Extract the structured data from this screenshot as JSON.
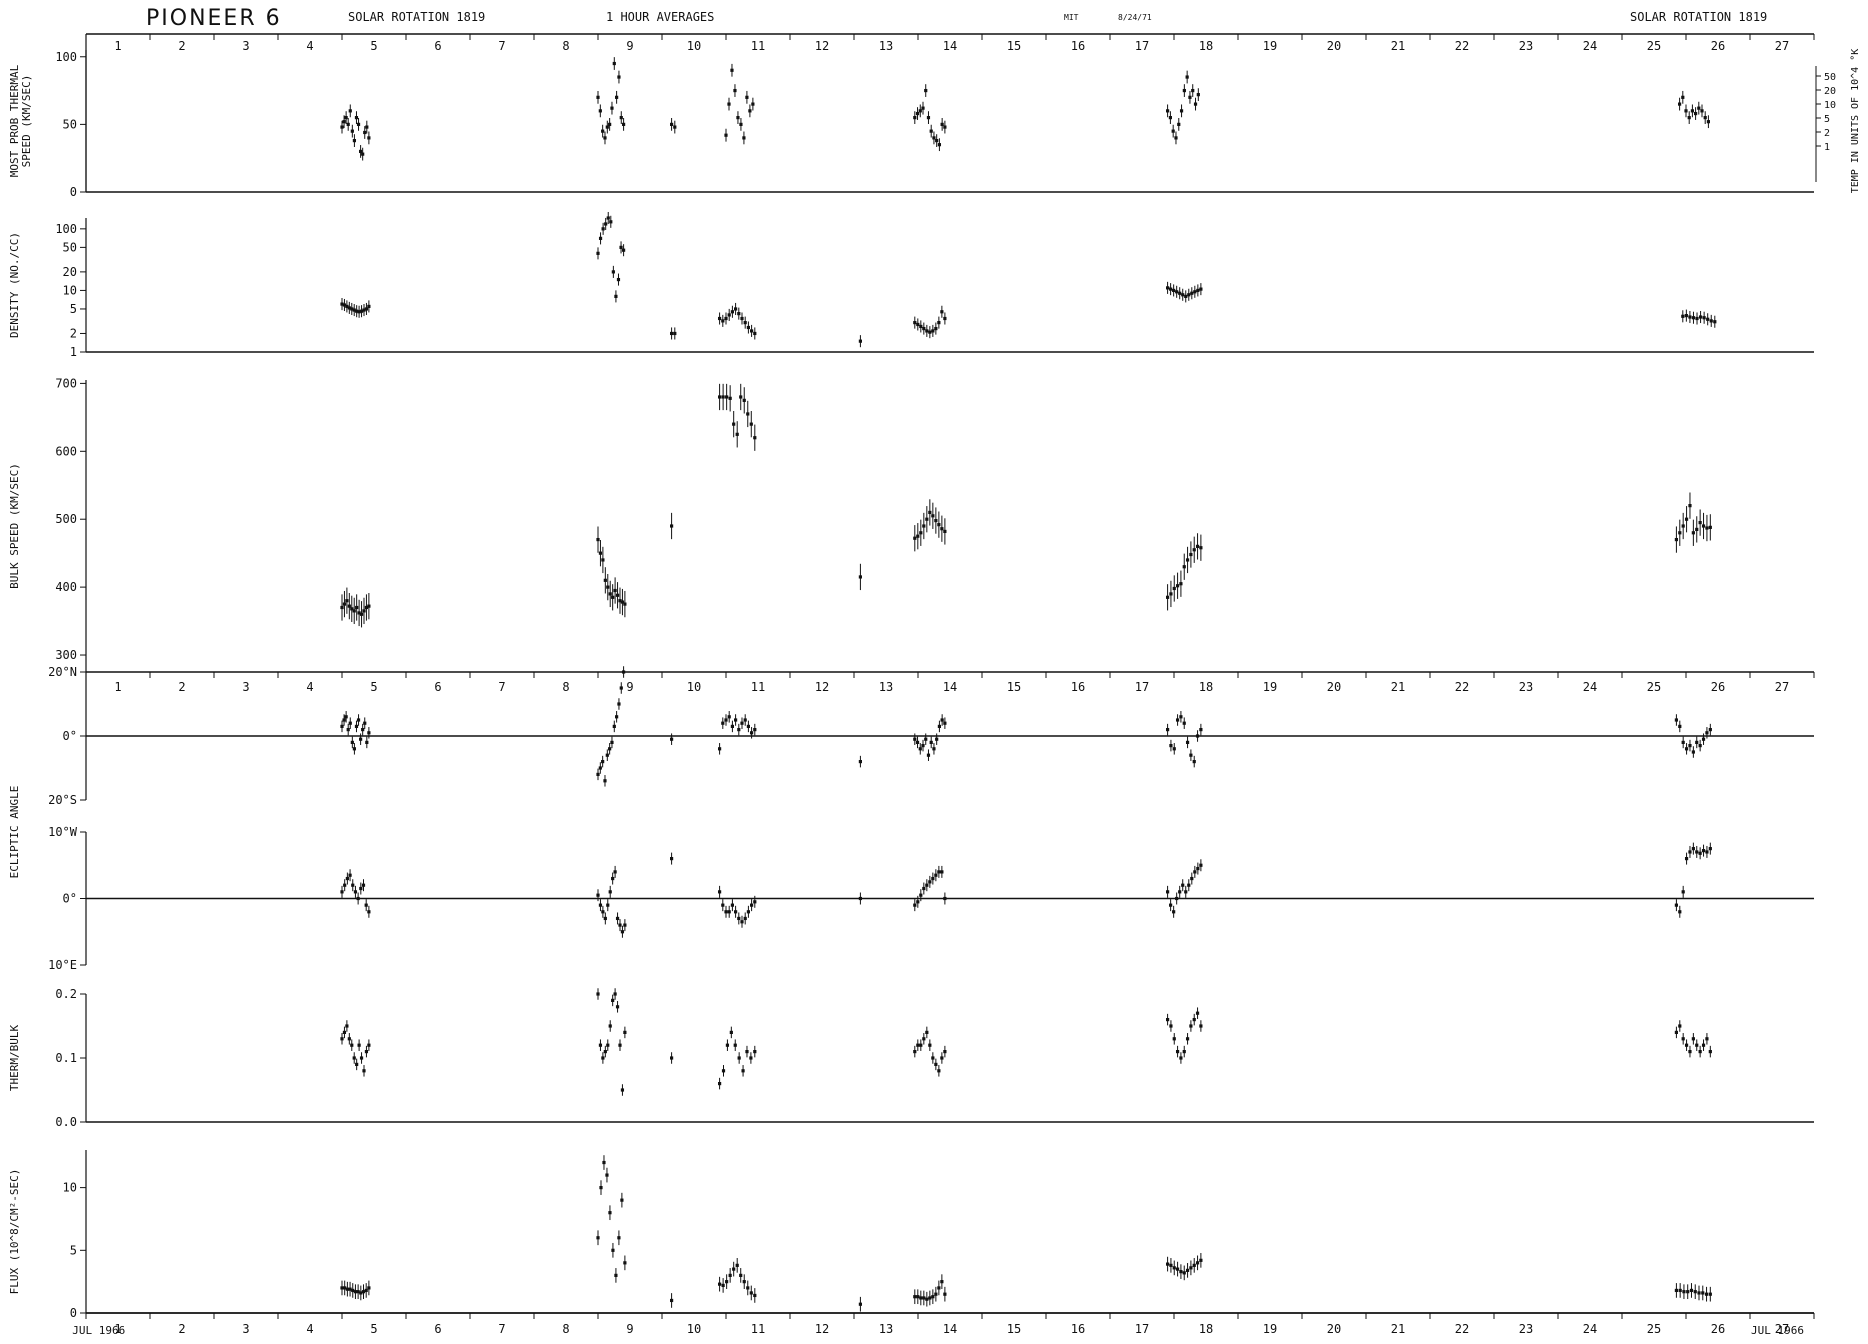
{
  "header": {
    "spacecraft": "PIONEER 6",
    "rotation_left": "SOLAR ROTATION 1819",
    "averaging": "1 HOUR AVERAGES",
    "institution": "MIT",
    "plot_date": "8/24/71",
    "rotation_right": "SOLAR ROTATION 1819"
  },
  "chart_data": {
    "type": "scatter",
    "x_axis": {
      "days": [
        "1",
        "2",
        "3",
        "4",
        "5",
        "6",
        "7",
        "8",
        "9",
        "10",
        "11",
        "12",
        "13",
        "14",
        "15",
        "16",
        "17",
        "18",
        "19",
        "20",
        "21",
        "22",
        "23",
        "24",
        "25",
        "26",
        "27"
      ],
      "start_label": "JUL 1966",
      "end_label": "JUL 1966",
      "xlim": [
        1,
        28
      ]
    },
    "panels": [
      {
        "id": "thermal",
        "ylabel": [
          "MOST PROB THERMAL",
          "SPEED (KM/SEC)"
        ],
        "yscale": "linear",
        "ylim": [
          0,
          105
        ],
        "yticks": [
          "0",
          "50",
          "100"
        ],
        "right_axis": {
          "label": "TEMP IN UNITS OF 10^4 °K",
          "ticks": [
            "50",
            "20",
            "10",
            "5",
            "2",
            "1"
          ]
        },
        "segments": [
          {
            "day_start": 5.0,
            "day_end": 5.42,
            "values": [
              48,
              52,
              55,
              50,
              60,
              45,
              38,
              55,
              50,
              30,
              28,
              44,
              48,
              40
            ]
          },
          {
            "day_start": 9.0,
            "day_end": 9.4,
            "values": [
              70,
              60,
              45,
              40,
              48,
              50,
              62,
              95,
              70,
              85,
              55,
              50
            ]
          },
          {
            "day_start": 10.15,
            "day_end": 10.2,
            "values": [
              50,
              48
            ]
          },
          {
            "day_start": 11.0,
            "day_end": 11.42,
            "values": [
              42,
              65,
              90,
              75,
              55,
              50,
              40,
              70,
              60,
              65
            ]
          },
          {
            "day_start": 13.95,
            "day_end": 14.42,
            "values": [
              55,
              58,
              60,
              62,
              75,
              55,
              45,
              40,
              38,
              35,
              50,
              48
            ]
          },
          {
            "day_start": 17.9,
            "day_end": 18.38,
            "values": [
              60,
              55,
              45,
              40,
              50,
              60,
              75,
              85,
              70,
              75,
              65,
              72
            ]
          },
          {
            "day_start": 25.9,
            "day_end": 26.35,
            "values": [
              65,
              70,
              60,
              55,
              60,
              58,
              62,
              60,
              55,
              52
            ]
          }
        ]
      },
      {
        "id": "density",
        "ylabel": [
          "DENSITY (NO./CC)"
        ],
        "yscale": "log",
        "ylim": [
          1,
          150
        ],
        "yticks": [
          "1",
          "2",
          "5",
          "10",
          "20",
          "50",
          "100"
        ],
        "segments": [
          {
            "day_start": 5.0,
            "day_end": 5.42,
            "values": [
              6,
              5.8,
              5.5,
              5.2,
              5,
              4.8,
              4.6,
              4.5,
              4.6,
              4.8,
              5,
              5.5
            ]
          },
          {
            "day_start": 9.0,
            "day_end": 9.4,
            "values": [
              40,
              70,
              100,
              120,
              150,
              130,
              20,
              8,
              15,
              50,
              45
            ]
          },
          {
            "day_start": 10.15,
            "day_end": 10.2,
            "values": [
              2,
              2
            ]
          },
          {
            "day_start": 10.9,
            "day_end": 11.45,
            "values": [
              3.5,
              3.2,
              3.5,
              4,
              4.5,
              5,
              4.2,
              3.5,
              3,
              2.5,
              2.2,
              2
            ]
          },
          {
            "day_start": 13.1,
            "day_end": 13.12,
            "values": [
              1.5
            ]
          },
          {
            "day_start": 13.95,
            "day_end": 14.42,
            "values": [
              3,
              2.8,
              2.6,
              2.4,
              2.2,
              2.1,
              2.2,
              2.4,
              3,
              4.5,
              3.5
            ]
          },
          {
            "day_start": 17.9,
            "day_end": 18.42,
            "values": [
              11,
              10.5,
              10,
              9.5,
              9,
              8.5,
              8,
              8.5,
              9,
              9.5,
              10,
              10.5
            ]
          },
          {
            "day_start": 25.95,
            "day_end": 26.45,
            "values": [
              3.8,
              3.9,
              3.7,
              3.6,
              3.5,
              3.7,
              3.6,
              3.4,
              3.2,
              3.1
            ]
          }
        ]
      },
      {
        "id": "bulk",
        "ylabel": [
          "BULK SPEED (KM/SEC)"
        ],
        "yscale": "linear",
        "ylim": [
          275,
          705
        ],
        "yticks": [
          "300",
          "400",
          "500",
          "600",
          "700"
        ],
        "segments": [
          {
            "day_start": 5.0,
            "day_end": 5.42,
            "values": [
              370,
              375,
              380,
              372,
              368,
              365,
              370,
              362,
              360,
              365,
              370,
              372
            ]
          },
          {
            "day_start": 9.0,
            "day_end": 9.42,
            "values": [
              470,
              450,
              440,
              410,
              400,
              390,
              385,
              395,
              388,
              380,
              378,
              375
            ]
          },
          {
            "day_start": 10.15,
            "day_end": 10.18,
            "values": [
              490
            ]
          },
          {
            "day_start": 10.9,
            "day_end": 11.45,
            "values": [
              680,
              680,
              680,
              678,
              640,
              625,
              680,
              675,
              655,
              640,
              620
            ]
          },
          {
            "day_start": 13.1,
            "day_end": 13.12,
            "values": [
              415
            ]
          },
          {
            "day_start": 13.95,
            "day_end": 14.42,
            "values": [
              472,
              475,
              480,
              490,
              500,
              510,
              505,
              498,
              492,
              486,
              482
            ]
          },
          {
            "day_start": 17.9,
            "day_end": 18.42,
            "values": [
              385,
              390,
              398,
              402,
              405,
              430,
              440,
              448,
              455,
              460,
              458
            ]
          },
          {
            "day_start": 25.85,
            "day_end": 26.38,
            "values": [
              470,
              480,
              490,
              500,
              520,
              480,
              485,
              495,
              490,
              487,
              488
            ]
          }
        ]
      },
      {
        "id": "ecl_ns",
        "ylabel": [
          "ECLIPTIC ANGLE"
        ],
        "yscale": "linear",
        "ylim": [
          -20,
          20
        ],
        "ytick_labels": [
          {
            "v": 20,
            "t": "20°N"
          },
          {
            "v": 0,
            "t": "0°"
          },
          {
            "v": -20,
            "t": "20°S"
          }
        ],
        "zero_line": true,
        "segments": [
          {
            "day_start": 5.0,
            "day_end": 5.42,
            "values": [
              3,
              5,
              6,
              2,
              4,
              -2,
              -4,
              3,
              5,
              -1,
              2,
              4,
              -2,
              1
            ]
          },
          {
            "day_start": 9.0,
            "day_end": 9.4,
            "values": [
              -12,
              -10,
              -8,
              -14,
              -6,
              -4,
              -2,
              3,
              6,
              10,
              15,
              20
            ]
          },
          {
            "day_start": 10.15,
            "day_end": 10.18,
            "values": [
              -1
            ]
          },
          {
            "day_start": 10.9,
            "day_end": 11.45,
            "values": [
              -4,
              4,
              5,
              6,
              3,
              5,
              2,
              4,
              5,
              3,
              1,
              2
            ]
          },
          {
            "day_start": 13.1,
            "day_end": 13.12,
            "values": [
              -8
            ]
          },
          {
            "day_start": 13.95,
            "day_end": 14.42,
            "values": [
              -1,
              -2,
              -4,
              -3,
              -1,
              -6,
              -2,
              -4,
              -1,
              3,
              5,
              4
            ]
          },
          {
            "day_start": 17.9,
            "day_end": 18.42,
            "values": [
              2,
              -3,
              -4,
              5,
              6,
              4,
              -2,
              -6,
              -8,
              0,
              2
            ]
          },
          {
            "day_start": 25.85,
            "day_end": 26.38,
            "values": [
              5,
              3,
              -2,
              -4,
              -3,
              -5,
              -2,
              -3,
              -1,
              1,
              2
            ]
          }
        ]
      },
      {
        "id": "ecl_we",
        "yscale": "linear",
        "ylim": [
          -10,
          10
        ],
        "ytick_labels": [
          {
            "v": 10,
            "t": "10°W"
          },
          {
            "v": 0,
            "t": "0°"
          },
          {
            "v": -10,
            "t": "10°E"
          }
        ],
        "zero_line": true,
        "segments": [
          {
            "day_start": 5.0,
            "day_end": 5.42,
            "values": [
              1,
              2,
              3,
              3.5,
              2,
              1,
              0,
              1.5,
              2,
              -1,
              -2
            ]
          },
          {
            "day_start": 9.0,
            "day_end": 9.42,
            "values": [
              0.5,
              -1,
              -2,
              -3,
              -1,
              1,
              3,
              4,
              -3,
              -4,
              -5,
              -4
            ]
          },
          {
            "day_start": 10.15,
            "day_end": 10.18,
            "values": [
              6
            ]
          },
          {
            "day_start": 10.9,
            "day_end": 11.45,
            "values": [
              1,
              -1,
              -2,
              -2,
              -1,
              -2,
              -3,
              -3.5,
              -3,
              -2,
              -1,
              -0.5
            ]
          },
          {
            "day_start": 13.1,
            "day_end": 13.12,
            "values": [
              0
            ]
          },
          {
            "day_start": 13.95,
            "day_end": 14.42,
            "values": [
              -1,
              -0.5,
              0.5,
              1.5,
              2,
              2.5,
              3,
              3.5,
              4,
              4,
              0
            ]
          },
          {
            "day_start": 17.9,
            "day_end": 18.42,
            "values": [
              1,
              -1,
              -2,
              0,
              1,
              2,
              1,
              2,
              3,
              4,
              4.5,
              5
            ]
          },
          {
            "day_start": 25.85,
            "day_end": 26.38,
            "values": [
              -1,
              -2,
              1,
              6,
              7,
              7.5,
              7,
              6.8,
              7.2,
              7,
              7.5
            ]
          }
        ]
      },
      {
        "id": "therm_bulk",
        "ylabel": [
          "THERM/BULK"
        ],
        "yscale": "linear",
        "ylim": [
          0,
          0.2
        ],
        "yticks": [
          "0.0",
          "0.1",
          "0.2"
        ],
        "zero_line": true,
        "segments": [
          {
            "day_start": 5.0,
            "day_end": 5.42,
            "values": [
              0.13,
              0.14,
              0.15,
              0.13,
              0.12,
              0.1,
              0.09,
              0.12,
              0.1,
              0.08,
              0.11,
              0.12
            ]
          },
          {
            "day_start": 9.0,
            "day_end": 9.42,
            "values": [
              0.2,
              0.12,
              0.1,
              0.11,
              0.12,
              0.15,
              0.19,
              0.2,
              0.18,
              0.12,
              0.05,
              0.14
            ]
          },
          {
            "day_start": 10.15,
            "day_end": 10.18,
            "values": [
              0.1
            ]
          },
          {
            "day_start": 10.9,
            "day_end": 11.45,
            "values": [
              0.06,
              0.08,
              0.12,
              0.14,
              0.12,
              0.1,
              0.08,
              0.11,
              0.1,
              0.11
            ]
          },
          {
            "day_start": 13.95,
            "day_end": 14.42,
            "values": [
              0.11,
              0.12,
              0.12,
              0.13,
              0.14,
              0.12,
              0.1,
              0.09,
              0.08,
              0.1,
              0.11
            ]
          },
          {
            "day_start": 17.9,
            "day_end": 18.42,
            "values": [
              0.16,
              0.15,
              0.13,
              0.11,
              0.1,
              0.11,
              0.13,
              0.15,
              0.16,
              0.17,
              0.15
            ]
          },
          {
            "day_start": 25.85,
            "day_end": 26.38,
            "values": [
              0.14,
              0.15,
              0.13,
              0.12,
              0.11,
              0.13,
              0.12,
              0.11,
              0.12,
              0.13,
              0.11
            ]
          }
        ]
      },
      {
        "id": "flux",
        "ylabel": [
          "FLUX (10^8/CM²-SEC)"
        ],
        "yscale": "linear",
        "ylim": [
          0,
          13
        ],
        "yticks": [
          "0",
          "5",
          "10"
        ],
        "segments": [
          {
            "day_start": 5.0,
            "day_end": 5.42,
            "values": [
              2,
              2,
              1.9,
              1.9,
              1.8,
              1.7,
              1.7,
              1.6,
              1.7,
              1.8,
              2
            ]
          },
          {
            "day_start": 9.0,
            "day_end": 9.42,
            "values": [
              6,
              10,
              12,
              11,
              8,
              5,
              3,
              6,
              9,
              4
            ]
          },
          {
            "day_start": 10.15,
            "day_end": 10.18,
            "values": [
              1
            ]
          },
          {
            "day_start": 10.9,
            "day_end": 11.45,
            "values": [
              2.3,
              2.2,
              2.5,
              3,
              3.5,
              3.8,
              3,
              2.5,
              2,
              1.6,
              1.4
            ]
          },
          {
            "day_start": 13.1,
            "day_end": 13.12,
            "values": [
              0.7
            ]
          },
          {
            "day_start": 13.95,
            "day_end": 14.42,
            "values": [
              1.3,
              1.3,
              1.2,
              1.2,
              1.1,
              1.2,
              1.3,
              1.5,
              2,
              2.5,
              1.5
            ]
          },
          {
            "day_start": 17.9,
            "day_end": 18.42,
            "values": [
              3.9,
              3.8,
              3.6,
              3.5,
              3.3,
              3.2,
              3.4,
              3.6,
              3.8,
              4,
              4.2
            ]
          },
          {
            "day_start": 25.85,
            "day_end": 26.38,
            "values": [
              1.8,
              1.8,
              1.7,
              1.7,
              1.8,
              1.7,
              1.6,
              1.6,
              1.5,
              1.5
            ]
          }
        ]
      }
    ]
  }
}
